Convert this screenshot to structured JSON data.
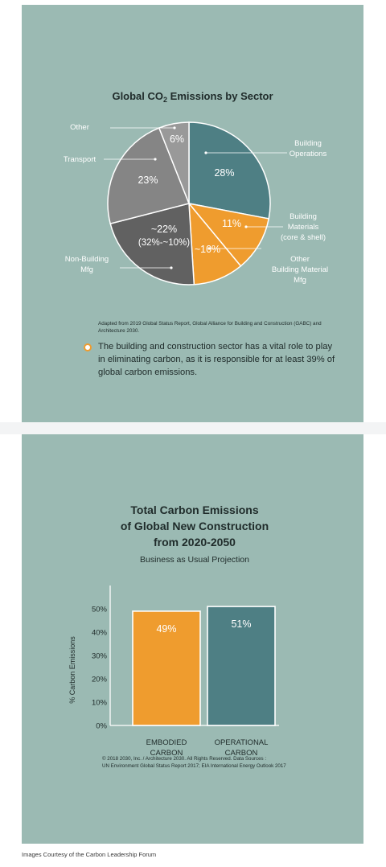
{
  "top_panel": {
    "title_prefix": "Global CO",
    "title_sub": "2",
    "title_suffix": " Emissions by Sector",
    "source_note": "Adapted from 2019 Global Status Report, Global Alliance for Building and Construction (GABC) and Architecture 2030.",
    "bullet_text": "The building and construction sector has a vital role to play in eliminating carbon, as it is responsible for at least 39% of global carbon emissions."
  },
  "bottom_panel": {
    "title_lines": [
      "Total Carbon Emissions",
      "of Global New Construction",
      "from 2020-2050"
    ],
    "subtitle": "Business as Usual Projection",
    "copyright_lines": [
      "© 2018 2030, Inc. / Architecture 2030. All Rights Reserved. Data Sources :",
      "UN Environment Global Status Report 2017; EIA International Energy Outlook 2017"
    ]
  },
  "credits": "Images Courtesy of the Carbon Leadership Forum",
  "colors": {
    "panel": "#9bbab3",
    "teal": "#4e7f84",
    "orange": "#ef9c2e",
    "gray_dark": "#616161",
    "gray_mid": "#858585",
    "gray_light": "#999999"
  },
  "chart_data": [
    {
      "type": "pie",
      "slices": [
        {
          "label": [
            "Building",
            "Operations"
          ],
          "value": 28,
          "value_label": [
            "28%"
          ],
          "color": "#4e7f84"
        },
        {
          "label": [
            "Building",
            "Materials",
            "(core & shell)"
          ],
          "value": 11,
          "value_label": [
            "11%"
          ],
          "color": "#ef9c2e"
        },
        {
          "label": [
            "Other",
            "Building Material",
            "Mfg"
          ],
          "value": 10,
          "value_label": [
            "~10%"
          ],
          "color": "#ef9c2e"
        },
        {
          "label": [
            "Non-Building",
            "Mfg"
          ],
          "value": 22,
          "value_label": [
            "~22%",
            "(32%-~10%)"
          ],
          "color": "#616161"
        },
        {
          "label": [
            "Transport"
          ],
          "value": 23,
          "value_label": [
            "23%"
          ],
          "color": "#858585"
        },
        {
          "label": [
            "Other"
          ],
          "value": 6,
          "value_label": [
            "6%"
          ],
          "color": "#999999"
        }
      ]
    },
    {
      "type": "bar",
      "categories": [
        [
          "EMBODIED",
          "CARBON"
        ],
        [
          "OPERATIONAL",
          "CARBON"
        ]
      ],
      "values": [
        49,
        51
      ],
      "value_labels": [
        "49%",
        "51%"
      ],
      "colors": [
        "#ef9c2e",
        "#4e7f84"
      ],
      "ylabel": "% Carbon Emissions",
      "yticks": [
        0,
        10,
        20,
        30,
        40,
        50
      ],
      "ytick_labels": [
        "0%",
        "10%",
        "20%",
        "30%",
        "40%",
        "50%"
      ],
      "ylim": [
        0,
        60
      ]
    }
  ]
}
